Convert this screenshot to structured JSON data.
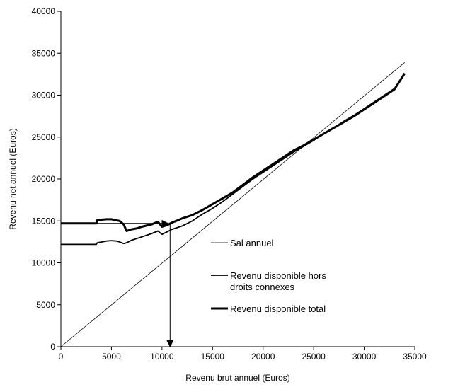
{
  "chart_data": {
    "type": "line",
    "title": "",
    "xlabel": "Revenu brut annuel (Euros)",
    "ylabel": "Revenu net annuel (Euros)",
    "xlim": [
      0,
      35000
    ],
    "ylim": [
      0,
      40000
    ],
    "xticks": [
      0,
      5000,
      10000,
      15000,
      20000,
      25000,
      30000,
      35000
    ],
    "yticks": [
      0,
      5000,
      10000,
      15000,
      20000,
      25000,
      30000,
      35000,
      40000
    ],
    "grid": false,
    "legend_position": "right",
    "series": [
      {
        "name": "Sal annuel",
        "style": "thin",
        "x": [
          0,
          34000
        ],
        "y": [
          0,
          33900
        ]
      },
      {
        "name": "Revenu disponible hors droits connexes",
        "style": "medium",
        "x": [
          0,
          3500,
          3600,
          4500,
          5000,
          5500,
          5800,
          6200,
          6500,
          7000,
          8000,
          9000,
          9600,
          10000,
          10500,
          11000,
          12000,
          13000,
          14000,
          15000,
          16000,
          17000,
          18000,
          19000,
          20000,
          21000,
          22000,
          23000,
          24000,
          25000,
          26000,
          27000,
          28000,
          29000,
          30000,
          31000,
          32000,
          33000,
          34000
        ],
        "y": [
          12200,
          12200,
          12400,
          12600,
          12650,
          12600,
          12500,
          12300,
          12400,
          12700,
          13100,
          13500,
          13800,
          13400,
          13700,
          14000,
          14400,
          15000,
          15800,
          16500,
          17300,
          18200,
          19100,
          20000,
          20800,
          21600,
          22400,
          23200,
          23900,
          24600,
          25400,
          26100,
          26900,
          27600,
          28400,
          29200,
          30000,
          30800,
          32500
        ]
      },
      {
        "name": "Revenu disponible total",
        "style": "thick",
        "x": [
          0,
          3500,
          3600,
          4500,
          5000,
          5800,
          6200,
          6500,
          7000,
          7500,
          8000,
          9000,
          9600,
          10000,
          10500,
          11000,
          12000,
          13000,
          14000,
          15000,
          16000,
          17000,
          18000,
          19000,
          20000,
          21000,
          22000,
          23000,
          24000,
          25000,
          26000,
          27000,
          28000,
          29000,
          30000,
          31000,
          32000,
          33000,
          34000
        ],
        "y": [
          14700,
          14700,
          15100,
          15200,
          15200,
          15000,
          14600,
          13800,
          14000,
          14100,
          14300,
          14600,
          14900,
          14300,
          14500,
          14800,
          15300,
          15700,
          16300,
          17000,
          17700,
          18400,
          19300,
          20200,
          21000,
          21800,
          22600,
          23400,
          24000,
          24700,
          25400,
          26100,
          26800,
          27500,
          28300,
          29100,
          29900,
          30700,
          32600
        ]
      }
    ],
    "annotations": [
      {
        "type": "arrow",
        "x1": 0,
        "y1": 14700,
        "x2": 10600,
        "y2": 14700
      },
      {
        "type": "arrow",
        "x1": 10800,
        "y1": 14700,
        "x2": 10800,
        "y2": 0
      }
    ]
  },
  "legend": [
    {
      "label": "Sal annuel",
      "style": "thin"
    },
    {
      "label": "Revenu disponible hors\ndroits connexes",
      "style": "medium"
    },
    {
      "label": "Revenu disponible total",
      "style": "thick"
    }
  ]
}
